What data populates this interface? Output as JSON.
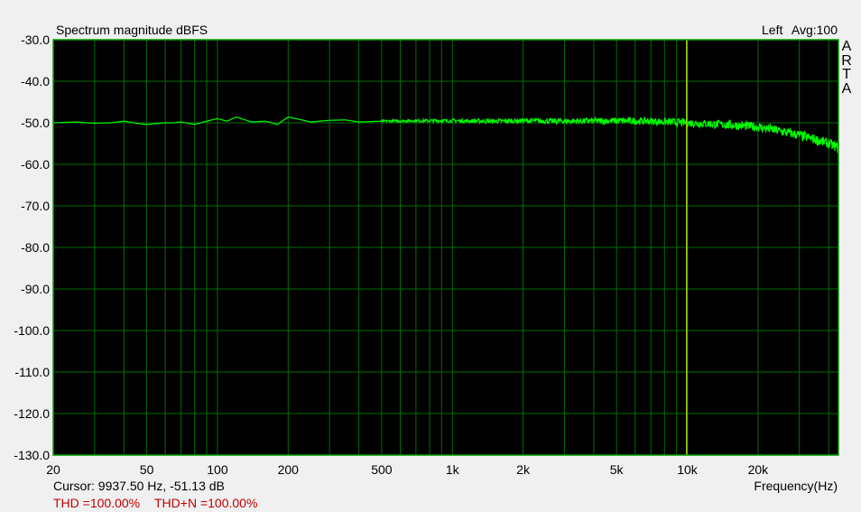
{
  "chart_data": {
    "type": "line",
    "title": "Spectrum magnitude dBFS",
    "channel_label": "Left",
    "avg_label": "Avg:100",
    "brand": "ARTA",
    "xlabel": "Frequency(Hz)",
    "xscale": "log",
    "xlim": [
      20,
      44000
    ],
    "ylim": [
      -130,
      -30
    ],
    "grid": true,
    "yticks": [
      "-30.0",
      "-40.0",
      "-50.0",
      "-60.0",
      "-70.0",
      "-80.0",
      "-90.0",
      "-100.0",
      "-110.0",
      "-120.0",
      "-130.0"
    ],
    "ytick_values": [
      -30,
      -40,
      -50,
      -60,
      -70,
      -80,
      -90,
      -100,
      -110,
      -120,
      -130
    ],
    "xticks": [
      "20",
      "50",
      "100",
      "200",
      "500",
      "1k",
      "2k",
      "5k",
      "10k",
      "20k"
    ],
    "xtick_values": [
      20,
      50,
      100,
      200,
      500,
      1000,
      2000,
      5000,
      10000,
      20000
    ],
    "series": [
      {
        "x": [
          20,
          25,
          30,
          35,
          40,
          45,
          50,
          55,
          60,
          65,
          70,
          80,
          90,
          100,
          110,
          120,
          140,
          160,
          180,
          200,
          220,
          250,
          300,
          350,
          400,
          500,
          700,
          1000,
          1500,
          2000,
          3000,
          5000,
          7000,
          10000,
          13000,
          16000,
          20000,
          25000,
          30000,
          35000,
          40000,
          44000
        ],
        "y": [
          -50.0,
          -49.8,
          -50.1,
          -50.0,
          -49.6,
          -50.1,
          -50.4,
          -50.2,
          -50.0,
          -50.0,
          -49.8,
          -50.4,
          -49.6,
          -49.0,
          -49.6,
          -48.6,
          -49.8,
          -49.6,
          -50.4,
          -48.6,
          -49.1,
          -49.8,
          -49.4,
          -49.3,
          -49.8,
          -49.6,
          -49.5,
          -49.5,
          -49.6,
          -49.5,
          -49.6,
          -49.5,
          -49.6,
          -50.0,
          -50.3,
          -50.6,
          -51.0,
          -52.0,
          -53.0,
          -54.0,
          -55.0,
          -56.0
        ]
      }
    ],
    "colors": {
      "trace": "#00ff00",
      "grid": "#007000",
      "border": "#00a000",
      "cursor": "#a8d800",
      "background": "#000000"
    },
    "cursor": {
      "freq_hz": 9937.5,
      "db": -51.13
    }
  },
  "status": {
    "cursor_text": "Cursor: 9937.50 Hz, -51.13 dB",
    "thd_text": "THD =100.00%",
    "thdn_text": "THD+N =100.00%"
  }
}
